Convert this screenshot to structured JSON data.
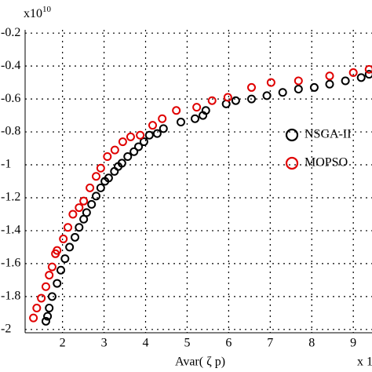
{
  "chart_data": {
    "type": "scatter",
    "x_label": "Avar( ζ p)",
    "y_multiplier": "x10",
    "y_multiplier_exp": "10",
    "x_multiplier": "x 1",
    "xlim": [
      1.1,
      9.45
    ],
    "ylim": [
      -2.02,
      -0.18
    ],
    "xticks": [
      2,
      3,
      4,
      5,
      6,
      7,
      8,
      9
    ],
    "yticks": [
      -0.2,
      -0.4,
      -0.6,
      -0.8,
      -1,
      -1.2,
      -1.4,
      -1.6,
      -1.8,
      -2
    ],
    "grid": true,
    "legend": "right",
    "series": [
      {
        "name": "NSGA-II",
        "color": "#000000",
        "x": [
          1.6,
          1.64,
          1.68,
          1.75,
          1.87,
          1.96,
          2.06,
          2.17,
          2.3,
          2.4,
          2.51,
          2.58,
          2.7,
          2.81,
          2.92,
          3.02,
          3.11,
          3.25,
          3.34,
          3.43,
          3.57,
          3.72,
          3.83,
          3.96,
          4.09,
          4.28,
          4.43,
          4.85,
          5.19,
          5.38,
          5.45,
          5.94,
          6.17,
          6.55,
          6.92,
          7.3,
          7.68,
          8.06,
          8.43,
          8.81,
          9.19,
          9.38
        ],
        "values": [
          -1.95,
          -1.92,
          -1.87,
          -1.8,
          -1.72,
          -1.64,
          -1.57,
          -1.5,
          -1.44,
          -1.38,
          -1.33,
          -1.29,
          -1.24,
          -1.19,
          -1.14,
          -1.1,
          -1.08,
          -1.04,
          -1.01,
          -0.99,
          -0.95,
          -0.92,
          -0.89,
          -0.86,
          -0.82,
          -0.81,
          -0.78,
          -0.74,
          -0.72,
          -0.7,
          -0.67,
          -0.63,
          -0.61,
          -0.6,
          -0.58,
          -0.56,
          -0.54,
          -0.53,
          -0.51,
          -0.49,
          -0.47,
          -0.45
        ]
      },
      {
        "name": "MOPSO",
        "color": "#e00000",
        "x": [
          1.3,
          1.38,
          1.49,
          1.6,
          1.68,
          1.75,
          1.83,
          1.87,
          2.02,
          2.13,
          2.25,
          2.4,
          2.51,
          2.66,
          2.81,
          2.92,
          3.08,
          3.26,
          3.45,
          3.64,
          3.87,
          4.17,
          4.4,
          4.74,
          5.23,
          5.6,
          5.98,
          6.55,
          7.02,
          7.68,
          8.43,
          9.0,
          9.38
        ],
        "values": [
          -1.93,
          -1.87,
          -1.81,
          -1.74,
          -1.67,
          -1.62,
          -1.54,
          -1.52,
          -1.45,
          -1.38,
          -1.3,
          -1.26,
          -1.22,
          -1.14,
          -1.07,
          -1.02,
          -0.95,
          -0.91,
          -0.86,
          -0.83,
          -0.82,
          -0.76,
          -0.72,
          -0.67,
          -0.65,
          -0.61,
          -0.59,
          -0.53,
          -0.5,
          -0.49,
          -0.46,
          -0.44,
          -0.42
        ]
      }
    ]
  }
}
